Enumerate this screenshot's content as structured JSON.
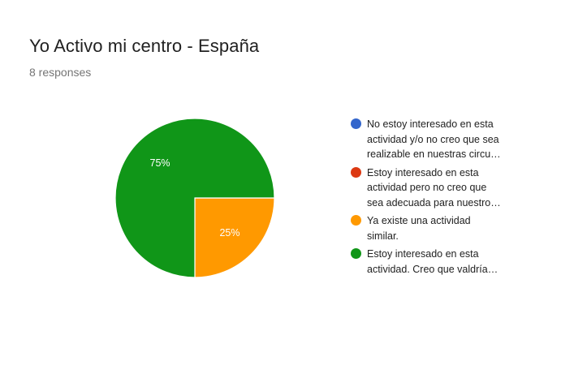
{
  "title": "Yo Activo mi centro - España",
  "responses_text": "8 responses",
  "chart_data": {
    "type": "pie",
    "title": "Yo Activo mi centro - España",
    "legend_position": "right",
    "series": [
      {
        "name": "No estoy interesado en esta actividad y/o no creo que sea realizable en nuestras circu…",
        "lines": [
          "No estoy interesado en esta",
          "actividad y/o no creo que sea",
          "realizable en nuestras circu…"
        ],
        "value": 0,
        "color": "#3366cc"
      },
      {
        "name": "Estoy interesado en esta actividad pero no creo que sea adecuada para nuestro…",
        "lines": [
          "Estoy interesado en esta",
          "actividad pero no creo que",
          "sea adecuada para nuestro…"
        ],
        "value": 0,
        "color": "#dc3912"
      },
      {
        "name": "Ya existe una actividad similar.",
        "lines": [
          "Ya existe una actividad",
          "similar."
        ],
        "value": 25,
        "label": "25%",
        "color": "#ff9900"
      },
      {
        "name": "Estoy interesado en esta actividad. Creo que valdría…",
        "lines": [
          "Estoy interesado en esta",
          "actividad. Creo que valdría…"
        ],
        "value": 75,
        "label": "75%",
        "color": "#109618"
      }
    ]
  }
}
